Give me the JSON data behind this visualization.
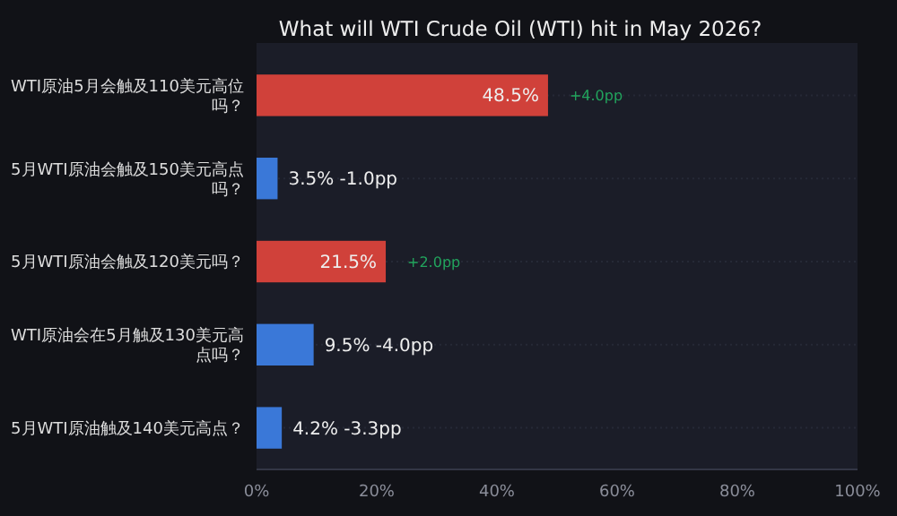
{
  "chart_data": {
    "type": "bar",
    "orientation": "horizontal",
    "title": "What will WTI Crude Oil (WTI) hit in May 2026?",
    "categories": [
      "WTI原油5月会触及110美元高位吗？",
      "5月WTI原油会触及150美元高点吗？",
      "5月WTI原油会触及120美元吗？",
      "WTI原油会在5月触及130美元高点吗？",
      "5月WTI原油触及140美元高点？"
    ],
    "values": [
      48.5,
      3.5,
      21.5,
      9.5,
      4.2
    ],
    "colors": [
      "#d0413a",
      "#3a78d8",
      "#d0413a",
      "#3a78d8",
      "#3a78d8"
    ],
    "value_labels": [
      "48.5%",
      "3.5% -1.0pp",
      "21.5%",
      "9.5% -4.0pp",
      "4.2% -3.3pp"
    ],
    "annotations": [
      {
        "text": "+4.0pp",
        "x": 48.5,
        "y": "WTI原油5月会触及110美元高位吗？"
      },
      {
        "text": "+2.0pp",
        "x": 21.5,
        "y": "5月WTI原油会触及120美元吗？"
      }
    ],
    "xlim": [
      0,
      100
    ],
    "grid": "y",
    "xticks": [
      {
        "value": 0,
        "label": "0%"
      },
      {
        "value": 20,
        "label": "20%"
      },
      {
        "value": 40,
        "label": "40%"
      },
      {
        "value": 60,
        "label": "60%"
      },
      {
        "value": 80,
        "label": "80%"
      },
      {
        "value": 100,
        "label": "100%"
      }
    ]
  }
}
